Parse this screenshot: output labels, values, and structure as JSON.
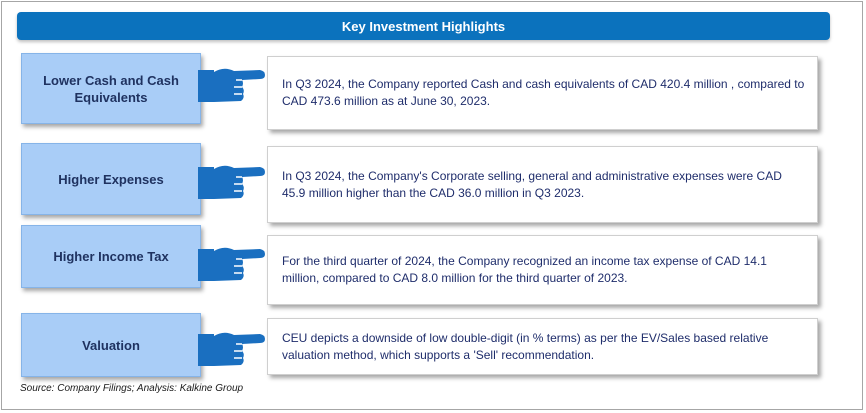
{
  "title": "Key Investment Highlights",
  "rows": [
    {
      "label": "Lower Cash and Cash Equivalents",
      "text": "In Q3 2024, the Company reported   Cash and cash equivalents of CAD 420.4 million , compared to CAD 473.6 million as at June 30, 2023."
    },
    {
      "label": "Higher Expenses",
      "text": "In Q3 2024, the Company's Corporate selling, general and administrative expenses were CAD 45.9 million higher than the CAD 36.0 million in Q3 2023."
    },
    {
      "label": "Higher Income Tax",
      "text": "For the third  quarter of 2024, the Company recognized an income tax expense of CAD 14.1 million, compared to CAD 8.0 million for the third quarter of 2023."
    },
    {
      "label": "Valuation",
      "text": "CEU depicts a downside of low double-digit (in % terms) as per the EV/Sales based relative valuation method, which supports a 'Sell' recommendation."
    }
  ],
  "source": "Source: Company Filings; Analysis: Kalkine Group",
  "colors": {
    "title_bar": "#0b72bd",
    "label_fill": "#a9cdf7",
    "hand": "#1a6fc0",
    "text": "#1f2d6b"
  },
  "icons": [
    "pointing-hand-icon"
  ]
}
